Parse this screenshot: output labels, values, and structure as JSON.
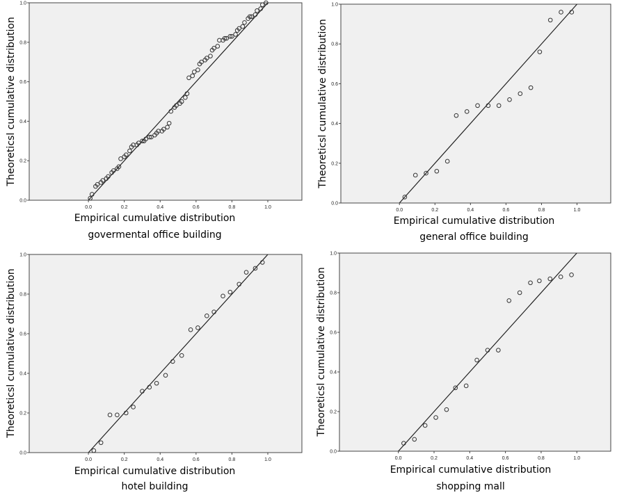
{
  "chart_data": [
    {
      "type": "scatter",
      "title": "",
      "xlabel": "Empirical cumulative distribution",
      "subtitle": "govermental office building",
      "ylabel": "Theoreticsl cumulative distribution",
      "xlim": [
        -0.33,
        1.19
      ],
      "ylim": [
        0,
        1
      ],
      "xticks": [
        "0.0",
        "0.2",
        "0.4",
        "0.6",
        "0.8",
        "1.0"
      ],
      "yticks": [
        "0.0",
        "0.2",
        "0.4",
        "0.6",
        "0.8",
        "1.0"
      ],
      "reference_line": "y = x",
      "grid": false,
      "x": [
        0.01,
        0.02,
        0.04,
        0.05,
        0.07,
        0.08,
        0.1,
        0.11,
        0.13,
        0.14,
        0.16,
        0.17,
        0.18,
        0.2,
        0.21,
        0.23,
        0.24,
        0.25,
        0.27,
        0.28,
        0.3,
        0.31,
        0.32,
        0.34,
        0.35,
        0.37,
        0.38,
        0.39,
        0.41,
        0.42,
        0.44,
        0.45,
        0.46,
        0.48,
        0.49,
        0.51,
        0.52,
        0.54,
        0.55,
        0.56,
        0.58,
        0.59,
        0.61,
        0.62,
        0.63,
        0.65,
        0.66,
        0.68,
        0.69,
        0.7,
        0.72,
        0.73,
        0.75,
        0.76,
        0.77,
        0.79,
        0.8,
        0.82,
        0.83,
        0.84,
        0.86,
        0.87,
        0.89,
        0.9,
        0.91,
        0.93,
        0.94,
        0.96,
        0.97,
        0.99
      ],
      "y": [
        0.01,
        0.03,
        0.07,
        0.08,
        0.09,
        0.1,
        0.11,
        0.12,
        0.14,
        0.15,
        0.16,
        0.17,
        0.21,
        0.22,
        0.23,
        0.25,
        0.27,
        0.28,
        0.28,
        0.29,
        0.3,
        0.3,
        0.31,
        0.32,
        0.32,
        0.33,
        0.34,
        0.35,
        0.35,
        0.36,
        0.37,
        0.39,
        0.45,
        0.47,
        0.48,
        0.49,
        0.5,
        0.52,
        0.54,
        0.62,
        0.63,
        0.65,
        0.66,
        0.69,
        0.7,
        0.71,
        0.72,
        0.73,
        0.76,
        0.77,
        0.78,
        0.81,
        0.81,
        0.82,
        0.82,
        0.83,
        0.83,
        0.84,
        0.86,
        0.87,
        0.88,
        0.9,
        0.92,
        0.93,
        0.93,
        0.94,
        0.96,
        0.97,
        0.99,
        1.0
      ]
    },
    {
      "type": "scatter",
      "title": "",
      "xlabel": "Empirical cumulative distribution",
      "subtitle": "general office building",
      "ylabel": "Theoreticsl cumulative distribution",
      "xlim": [
        -0.33,
        1.19
      ],
      "ylim": [
        0,
        1
      ],
      "xticks": [
        "0.0",
        "0.2",
        "0.4",
        "0.6",
        "0.8",
        "1.0"
      ],
      "yticks": [
        "0.0",
        "0.2",
        "0.4",
        "0.6",
        "0.8",
        "1.0"
      ],
      "reference_line": "y = x",
      "grid": false,
      "x": [
        0.03,
        0.09,
        0.15,
        0.21,
        0.27,
        0.32,
        0.38,
        0.44,
        0.5,
        0.56,
        0.62,
        0.68,
        0.74,
        0.79,
        0.85,
        0.91,
        0.97
      ],
      "y": [
        0.03,
        0.14,
        0.15,
        0.16,
        0.21,
        0.44,
        0.46,
        0.49,
        0.49,
        0.49,
        0.52,
        0.55,
        0.58,
        0.76,
        0.92,
        0.96,
        0.96
      ]
    },
    {
      "type": "scatter",
      "title": "",
      "xlabel": "Empirical cumulative distribution",
      "subtitle": "hotel building",
      "ylabel": "Theoreticsl cumulative distribution",
      "xlim": [
        -0.33,
        1.19
      ],
      "ylim": [
        0,
        1
      ],
      "xticks": [
        "0.0",
        "0.2",
        "0.4",
        "0.6",
        "0.8",
        "1.0"
      ],
      "yticks": [
        "0.0",
        "0.2",
        "0.4",
        "0.6",
        "0.8",
        "1.0"
      ],
      "reference_line": "y = x",
      "grid": false,
      "x": [
        0.03,
        0.07,
        0.12,
        0.16,
        0.21,
        0.25,
        0.3,
        0.34,
        0.38,
        0.43,
        0.47,
        0.52,
        0.57,
        0.61,
        0.66,
        0.7,
        0.75,
        0.79,
        0.84,
        0.88,
        0.93,
        0.97
      ],
      "y": [
        0.01,
        0.05,
        0.19,
        0.19,
        0.2,
        0.23,
        0.31,
        0.33,
        0.35,
        0.39,
        0.46,
        0.49,
        0.62,
        0.63,
        0.69,
        0.71,
        0.79,
        0.81,
        0.85,
        0.91,
        0.93,
        0.96
      ]
    },
    {
      "type": "scatter",
      "title": "",
      "xlabel": "Empirical cumulative distribution",
      "subtitle": "shopping mall",
      "ylabel": "Theoreticsl cumulative distribution",
      "xlim": [
        -0.33,
        1.19
      ],
      "ylim": [
        0,
        1
      ],
      "xticks": [
        "0.0",
        "0.2",
        "0.4",
        "0.6",
        "0.8",
        "1.0"
      ],
      "yticks": [
        "0.0",
        "0.2",
        "0.4",
        "0.6",
        "0.8",
        "1.0"
      ],
      "reference_line": "y = x",
      "grid": false,
      "x": [
        0.03,
        0.09,
        0.15,
        0.21,
        0.27,
        0.32,
        0.38,
        0.44,
        0.5,
        0.56,
        0.62,
        0.68,
        0.74,
        0.79,
        0.85,
        0.91,
        0.97
      ],
      "y": [
        0.04,
        0.06,
        0.13,
        0.17,
        0.21,
        0.32,
        0.33,
        0.46,
        0.51,
        0.51,
        0.76,
        0.8,
        0.85,
        0.86,
        0.87,
        0.88,
        0.89
      ]
    }
  ]
}
